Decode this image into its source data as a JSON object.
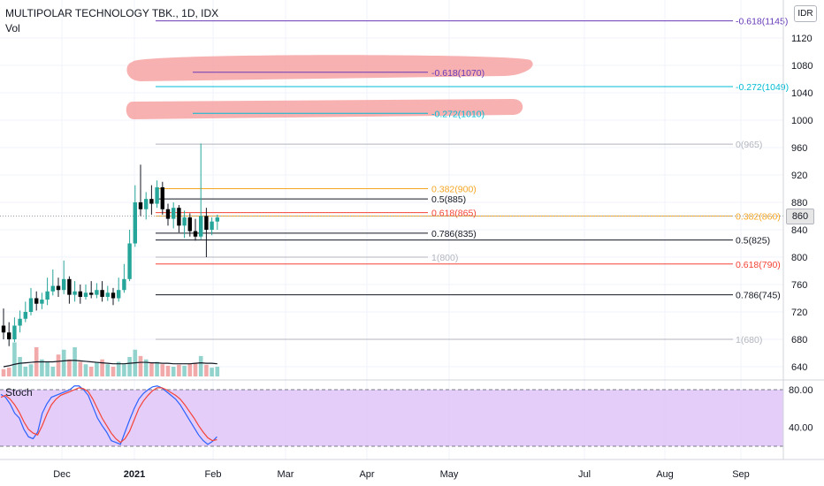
{
  "header": {
    "title": "MULTIPOLAR TECHNOLOGY TBK., 1D, IDX",
    "volume_label": "Vol",
    "currency": "IDR",
    "current_price": "860"
  },
  "stoch_label": "Stoch",
  "colors": {
    "up": "#26a69a",
    "down": "#000000",
    "wick": "#131722",
    "fib_purple": "#673ab7",
    "fib_teal": "#00bcd4",
    "fib_gray": "#b2b5be",
    "fib_orange": "#f5a623",
    "fib_red": "#f44336",
    "fib_black": "#131722",
    "highlight": "#f7a3a3",
    "stoch_band": "#e1c4f8",
    "stoch_k": "#2962ff",
    "stoch_d": "#f44336"
  },
  "chart_data": [
    {
      "type": "candlestick",
      "title": "MULTIPOLAR TECHNOLOGY TBK., 1D, IDX",
      "ylim": [
        610,
        1150
      ],
      "y_ticks": [
        640,
        680,
        720,
        760,
        800,
        840,
        880,
        920,
        960,
        1000,
        1040,
        1080,
        1120
      ],
      "x_tick_labels": [
        "Dec",
        "2021",
        "Feb",
        "Mar",
        "Apr",
        "May",
        "Jul",
        "Aug",
        "Sep"
      ],
      "grid": true,
      "candles": [
        [
          700,
          690,
          725,
          680
        ],
        [
          690,
          680,
          705,
          670
        ],
        [
          680,
          700,
          712,
          676
        ],
        [
          700,
          710,
          722,
          690
        ],
        [
          710,
          720,
          735,
          705
        ],
        [
          720,
          740,
          755,
          715
        ],
        [
          740,
          732,
          750,
          722
        ],
        [
          732,
          738,
          748,
          724
        ],
        [
          738,
          750,
          770,
          730
        ],
        [
          750,
          758,
          782,
          744
        ],
        [
          758,
          752,
          770,
          742
        ],
        [
          752,
          768,
          795,
          746
        ],
        [
          768,
          745,
          772,
          732
        ],
        [
          745,
          750,
          765,
          735
        ],
        [
          750,
          742,
          760,
          732
        ],
        [
          742,
          748,
          760,
          738
        ],
        [
          748,
          745,
          765,
          740
        ],
        [
          745,
          752,
          762,
          740
        ],
        [
          752,
          742,
          765,
          735
        ],
        [
          742,
          748,
          758,
          736
        ],
        [
          748,
          740,
          755,
          730
        ],
        [
          740,
          752,
          770,
          735
        ],
        [
          752,
          768,
          790,
          748
        ],
        [
          768,
          820,
          840,
          765
        ],
        [
          820,
          880,
          905,
          815
        ],
        [
          880,
          870,
          935,
          860
        ],
        [
          870,
          885,
          895,
          855
        ],
        [
          885,
          878,
          905,
          862
        ],
        [
          878,
          902,
          912,
          872
        ],
        [
          902,
          870,
          910,
          862
        ],
        [
          870,
          856,
          878,
          846
        ],
        [
          856,
          872,
          880,
          842
        ],
        [
          872,
          846,
          876,
          836
        ],
        [
          846,
          858,
          868,
          828
        ],
        [
          858,
          838,
          864,
          830
        ],
        [
          838,
          830,
          856,
          824
        ],
        [
          830,
          860,
          966,
          826
        ],
        [
          860,
          840,
          872,
          800
        ],
        [
          840,
          852,
          858,
          832
        ],
        [
          852,
          858,
          862,
          840
        ]
      ],
      "volumes": [
        15,
        18,
        70,
        40,
        20,
        25,
        60,
        35,
        30,
        20,
        45,
        55,
        35,
        60,
        30,
        25,
        20,
        30,
        35,
        25,
        20,
        30,
        25,
        40,
        55,
        42,
        35,
        28,
        30,
        25,
        22,
        20,
        24,
        22,
        26,
        28,
        42,
        24,
        18,
        20
      ],
      "ma_volume": [
        20,
        22,
        25,
        27,
        28,
        29,
        30,
        30,
        30,
        30,
        31,
        32,
        33,
        33,
        32,
        31,
        30,
        29,
        28,
        27,
        26,
        26,
        26,
        27,
        28,
        29,
        29,
        28,
        28,
        27,
        27,
        26,
        26,
        26,
        26,
        27,
        28,
        27,
        27,
        26
      ],
      "fib_set_1": [
        {
          "label": "-0.618(1145)",
          "value": 1145
        },
        {
          "label": "-0.272(1049)",
          "value": 1049
        },
        {
          "label": "0(965)",
          "value": 965
        },
        {
          "label": "0.382(860)",
          "value": 860
        },
        {
          "label": "0.5(825)",
          "value": 825
        },
        {
          "label": "0.618(790)",
          "value": 790
        },
        {
          "label": "0.786(745)",
          "value": 745
        },
        {
          "label": "1(680)",
          "value": 680
        }
      ],
      "fib_set_2": [
        {
          "label": "-0.618(1070)",
          "value": 1070
        },
        {
          "label": "-0.272(1010)",
          "value": 1010
        },
        {
          "label": "0.382(900)",
          "value": 900
        },
        {
          "label": "0.5(885)",
          "value": 885
        },
        {
          "label": "0.618(865)",
          "value": 865
        },
        {
          "label": "0.786(835)",
          "value": 835
        },
        {
          "label": "1(800)",
          "value": 800
        }
      ]
    },
    {
      "type": "line",
      "title": "Stoch",
      "ylim": [
        20,
        85
      ],
      "y_ticks": [
        40,
        80
      ],
      "y_tick_labels": [
        "40.00",
        "80.00"
      ],
      "bands": [
        20,
        80
      ],
      "series": [
        {
          "values": [
            75,
            72,
            65,
            55,
            50,
            38,
            30,
            28,
            35,
            55,
            65,
            72,
            74,
            76,
            78,
            80,
            84,
            84,
            80,
            74,
            62,
            50,
            42,
            35,
            26,
            24,
            22,
            35,
            48,
            60,
            70,
            76,
            80,
            83,
            84,
            82,
            78,
            74,
            70,
            64,
            56,
            48,
            40,
            32,
            26,
            22,
            25,
            30
          ]
        },
        {
          "values": [
            72,
            74,
            70,
            64,
            56,
            46,
            38,
            34,
            32,
            42,
            54,
            64,
            70,
            74,
            76,
            78,
            80,
            82,
            81,
            78,
            70,
            60,
            50,
            42,
            34,
            28,
            24,
            28,
            36,
            48,
            60,
            68,
            74,
            79,
            82,
            82,
            80,
            77,
            74,
            70,
            64,
            57,
            50,
            42,
            35,
            29,
            26,
            27
          ]
        }
      ]
    }
  ]
}
